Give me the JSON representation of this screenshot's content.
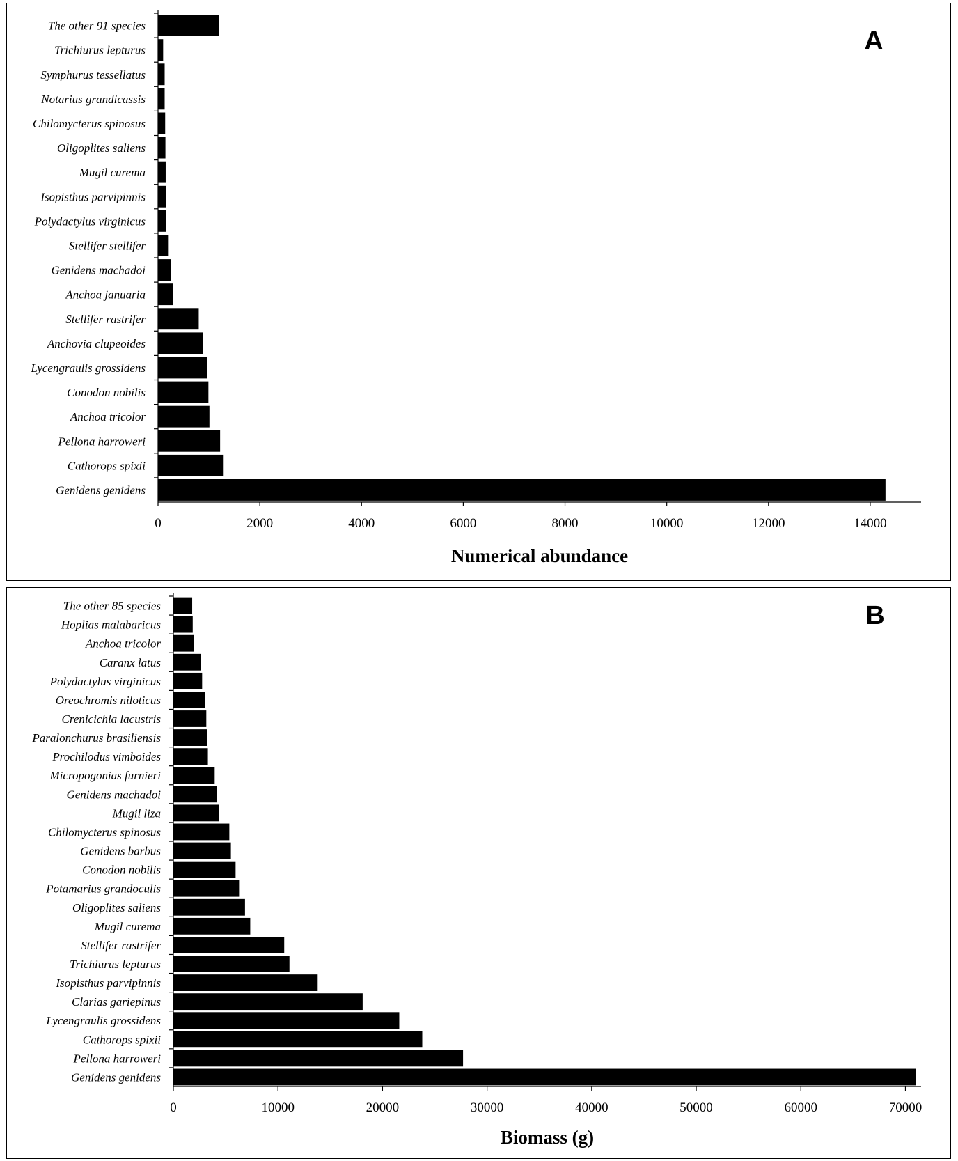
{
  "chart_data": [
    {
      "type": "bar",
      "orientation": "horizontal",
      "panel_label": "A",
      "xlabel": "Numerical abundance",
      "ylabel": "",
      "xlim": [
        0,
        15000
      ],
      "xticks": [
        0,
        2000,
        4000,
        6000,
        8000,
        10000,
        12000,
        14000
      ],
      "grid": false,
      "categories": [
        "The other 91 species",
        "Trichiurus lepturus",
        "Symphurus tessellatus",
        "Notarius grandicassis",
        "Chilomycterus spinosus",
        "Oligoplites saliens",
        "Mugil curema",
        "Isopisthus parvipinnis",
        "Polydactylus virginicus",
        "Stellifer stellifer",
        "Genidens machadoi",
        "Anchoa januaria",
        "Stellifer rastrifer",
        "Anchovia clupeoides",
        "Lycengraulis grossidens",
        "Conodon nobilis",
        "Anchoa tricolor",
        "Pellona harroweri",
        "Cathorops spixii",
        "Genidens genidens"
      ],
      "values": [
        1200,
        100,
        130,
        130,
        140,
        145,
        150,
        155,
        160,
        210,
        250,
        300,
        800,
        880,
        960,
        990,
        1010,
        1220,
        1290,
        14300
      ]
    },
    {
      "type": "bar",
      "orientation": "horizontal",
      "panel_label": "B",
      "xlabel": "Biomass (g)",
      "ylabel": "",
      "xlim": [
        0,
        71500
      ],
      "xticks": [
        0,
        10000,
        20000,
        30000,
        40000,
        50000,
        60000,
        70000
      ],
      "grid": false,
      "categories": [
        "The other 85 species",
        "Hoplias malabaricus",
        "Anchoa tricolor",
        "Caranx latus",
        "Polydactylus virginicus",
        "Oreochromis niloticus",
        "Crenicichla lacustris",
        "Paralonchurus brasiliensis",
        "Prochilodus vimboides",
        "Micropogonias furnieri",
        "Genidens machadoi",
        "Mugil liza",
        "Chilomycterus spinosus",
        "Genidens barbus",
        "Conodon nobilis",
        "Potamarius grandoculis",
        "Oligoplites saliens",
        "Mugil curema",
        "Stellifer rastrifer",
        "Trichiurus lepturus",
        "Isopisthus parvipinnis",
        "Clarias gariepinus",
        "Lycengraulis grossidens",
        "Cathorops spixii",
        "Pellona harroweri",
        "Genidens genidens"
      ],
      "values": [
        1800,
        1850,
        1950,
        2600,
        2750,
        3050,
        3150,
        3250,
        3300,
        3950,
        4150,
        4350,
        5350,
        5500,
        5950,
        6350,
        6850,
        7350,
        10600,
        11100,
        13800,
        18100,
        21600,
        23800,
        27700,
        71000
      ]
    }
  ]
}
